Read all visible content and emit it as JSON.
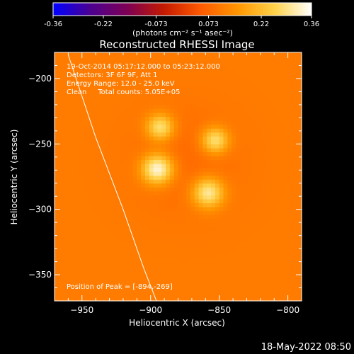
{
  "chart_data": {
    "type": "heatmap",
    "title": "Reconstructed RHESSI Image",
    "xlabel": "Heliocentric X (arcsec)",
    "ylabel": "Heliocentric Y (arcsec)",
    "xlim": [
      -970,
      -790
    ],
    "ylim": [
      -370,
      -180
    ],
    "x_ticks": [
      -950,
      -900,
      -850,
      -800
    ],
    "y_ticks": [
      -200,
      -250,
      -300,
      -350
    ],
    "colorbar": {
      "range": [
        -0.36,
        0.36
      ],
      "ticks": [
        "-0.36",
        "-0.22",
        "-0.073",
        "0.073",
        "0.22",
        "0.36"
      ],
      "unit_label": "(photons cm⁻² s⁻¹ asec⁻²)",
      "colormap": [
        "#0000ff",
        "#4b0091",
        "#7d0055",
        "#c41a00",
        "#ff5a00",
        "#ff9600",
        "#ffd24a",
        "#ffffff"
      ]
    },
    "annotations": [
      "19-Oct-2014 05:17:12.000 to 05:23:12.000",
      "Detectors: 3F 6F 9F, Att 1",
      "Energy Range: 12.0 - 25.0 keV",
      "Clean     Total counts: 5.05E+05"
    ],
    "peak_label": "Position of Peak = [-894,-269]",
    "peak": [
      -894,
      -269
    ],
    "background_level": 0.11,
    "sources": [
      {
        "x": -895,
        "y": -269,
        "peak": 0.36,
        "sigma": 8
      },
      {
        "x": -893,
        "y": -237,
        "peak": 0.3,
        "sigma": 7
      },
      {
        "x": -853,
        "y": -247,
        "peak": 0.3,
        "sigma": 7
      },
      {
        "x": -858,
        "y": -287,
        "peak": 0.32,
        "sigma": 8
      },
      {
        "x": -875,
        "y": -262,
        "peak": 0.06,
        "sigma": 30
      }
    ],
    "limb_curve": [
      [
        -960,
        -182
      ],
      [
        -940,
        -245
      ],
      [
        -920,
        -300
      ],
      [
        -905,
        -345
      ],
      [
        -895,
        -372
      ]
    ]
  },
  "footer_date": "18-May-2022 08:50"
}
